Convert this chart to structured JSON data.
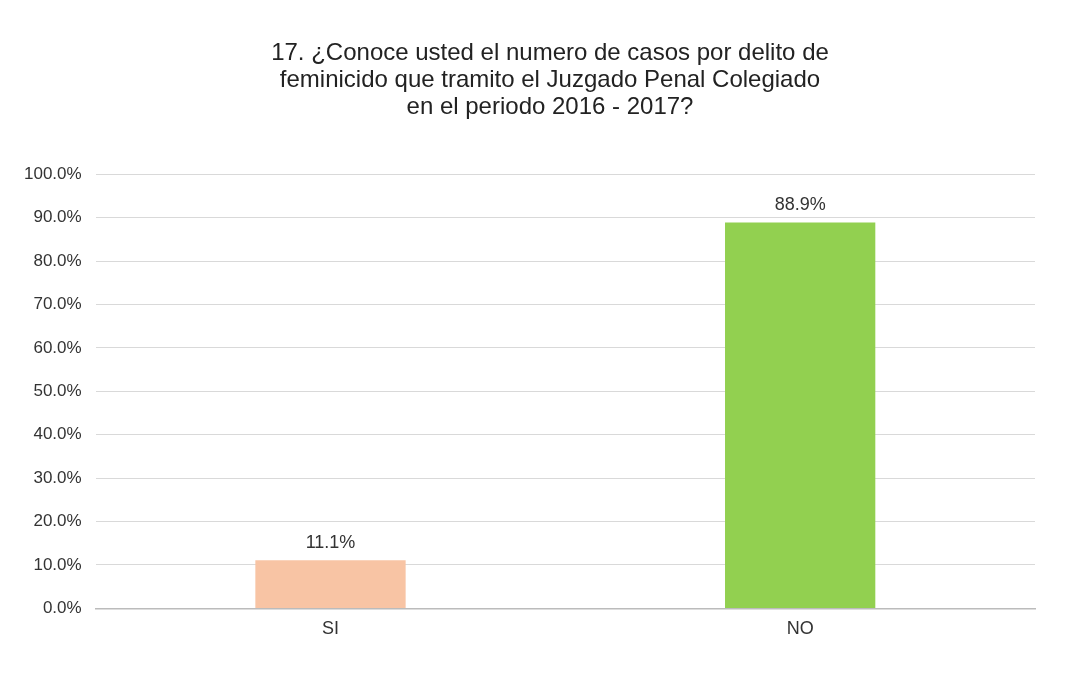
{
  "chart_data": {
    "type": "bar",
    "title": "17. ¿Conoce usted el numero de casos por delito de feminicido que tramito el Juzgado Penal Colegiado en el periodo 2016 - 2017?",
    "categories": [
      "SI",
      "NO"
    ],
    "values": [
      11.1,
      88.9
    ],
    "colors": [
      "#f8c4a4",
      "#92d050"
    ],
    "value_labels": [
      "11.1%",
      "88.9%"
    ],
    "ylim": [
      0,
      100
    ],
    "yticks": [
      {
        "value": 0,
        "label": "0.0%"
      },
      {
        "value": 10,
        "label": "10.0%"
      },
      {
        "value": 20,
        "label": "20.0%"
      },
      {
        "value": 30,
        "label": "30.0%"
      },
      {
        "value": 40,
        "label": "40.0%"
      },
      {
        "value": 50,
        "label": "50.0%"
      },
      {
        "value": 60,
        "label": "60.0%"
      },
      {
        "value": 70,
        "label": "70.0%"
      },
      {
        "value": 80,
        "label": "80.0%"
      },
      {
        "value": 90,
        "label": "90.0%"
      },
      {
        "value": 100,
        "label": "100.0%"
      }
    ],
    "grid": "y",
    "legend": false
  }
}
